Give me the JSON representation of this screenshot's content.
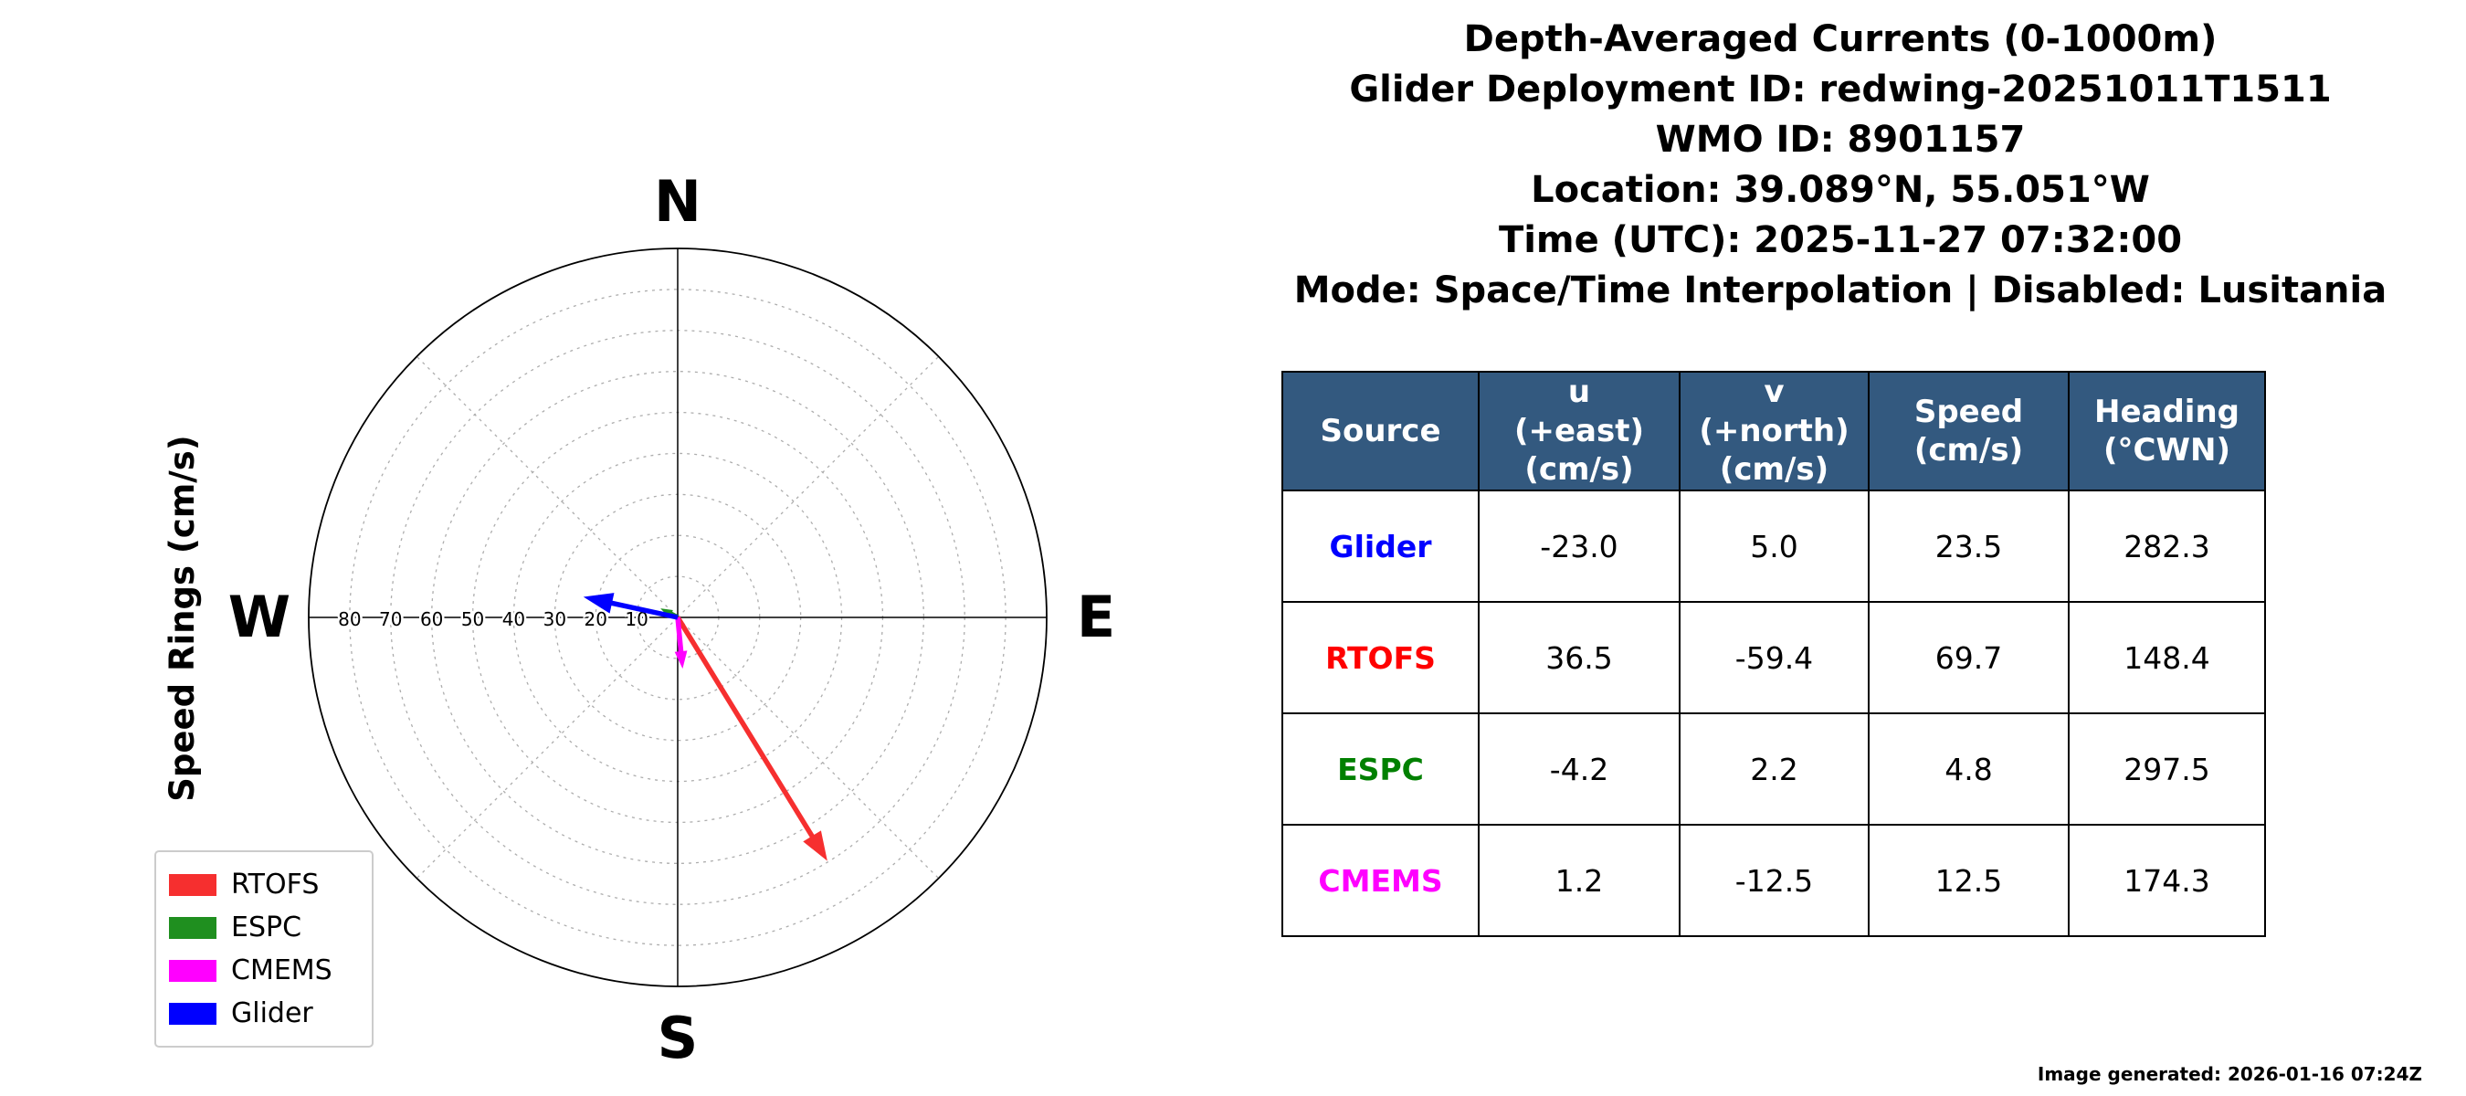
{
  "header": {
    "title": "Depth-Averaged Currents (0-1000m)",
    "deployment": "Glider Deployment ID: redwing-20251011T1511",
    "wmo": "WMO ID: 8901157",
    "location": "Location: 39.089°N, 55.051°W",
    "time": "Time (UTC): 2025-11-27 07:32:00",
    "mode": "Mode: Space/Time Interpolation | Disabled: Lusitania"
  },
  "compass": {
    "axis_label": "Speed Rings (cm/s)",
    "cardinal": {
      "n": "N",
      "e": "E",
      "s": "S",
      "w": "W"
    },
    "ring_values": [
      10,
      20,
      30,
      40,
      50,
      60,
      70,
      80
    ],
    "ring_max": 90
  },
  "legend": {
    "items": [
      {
        "label": "RTOFS",
        "color": "#f62f2f"
      },
      {
        "label": "ESPC",
        "color": "#1f8f1f"
      },
      {
        "label": "CMEMS",
        "color": "#ff00ff"
      },
      {
        "label": "Glider",
        "color": "#0000ff"
      }
    ]
  },
  "chart_data": {
    "type": "polar_quiver",
    "title": "Depth-Averaged Currents (0-1000m)",
    "units": "cm/s",
    "ring_values": [
      10,
      20,
      30,
      40,
      50,
      60,
      70,
      80
    ],
    "ring_max": 90,
    "vectors": [
      {
        "name": "RTOFS",
        "u": 36.5,
        "v": -59.4,
        "speed": 69.7,
        "heading": 148.4,
        "color": "#f62f2f"
      },
      {
        "name": "ESPC",
        "u": -4.2,
        "v": 2.2,
        "speed": 4.8,
        "heading": 297.5,
        "color": "#1f8f1f"
      },
      {
        "name": "CMEMS",
        "u": 1.2,
        "v": -12.5,
        "speed": 12.5,
        "heading": 174.3,
        "color": "#ff00ff"
      },
      {
        "name": "Glider",
        "u": -23.0,
        "v": 5.0,
        "speed": 23.5,
        "heading": 282.3,
        "color": "#0000ff"
      }
    ]
  },
  "table": {
    "header_bg": "#33597f",
    "headers": [
      "Source",
      "u\n(+east)\n(cm/s)",
      "v\n(+north)\n(cm/s)",
      "Speed\n(cm/s)",
      "Heading\n(°CWN)"
    ],
    "rows": [
      {
        "source": "Glider",
        "color": "#0000ff",
        "u": "-23.0",
        "v": "5.0",
        "speed": "23.5",
        "heading": "282.3"
      },
      {
        "source": "RTOFS",
        "color": "#ff0000",
        "u": "36.5",
        "v": "-59.4",
        "speed": "69.7",
        "heading": "148.4"
      },
      {
        "source": "ESPC",
        "color": "#008000",
        "u": "-4.2",
        "v": "2.2",
        "speed": "4.8",
        "heading": "297.5"
      },
      {
        "source": "CMEMS",
        "color": "#ff00ff",
        "u": "1.2",
        "v": "-12.5",
        "speed": "12.5",
        "heading": "174.3"
      }
    ]
  },
  "footer": {
    "generated": "Image generated: 2026-01-16 07:24Z"
  }
}
